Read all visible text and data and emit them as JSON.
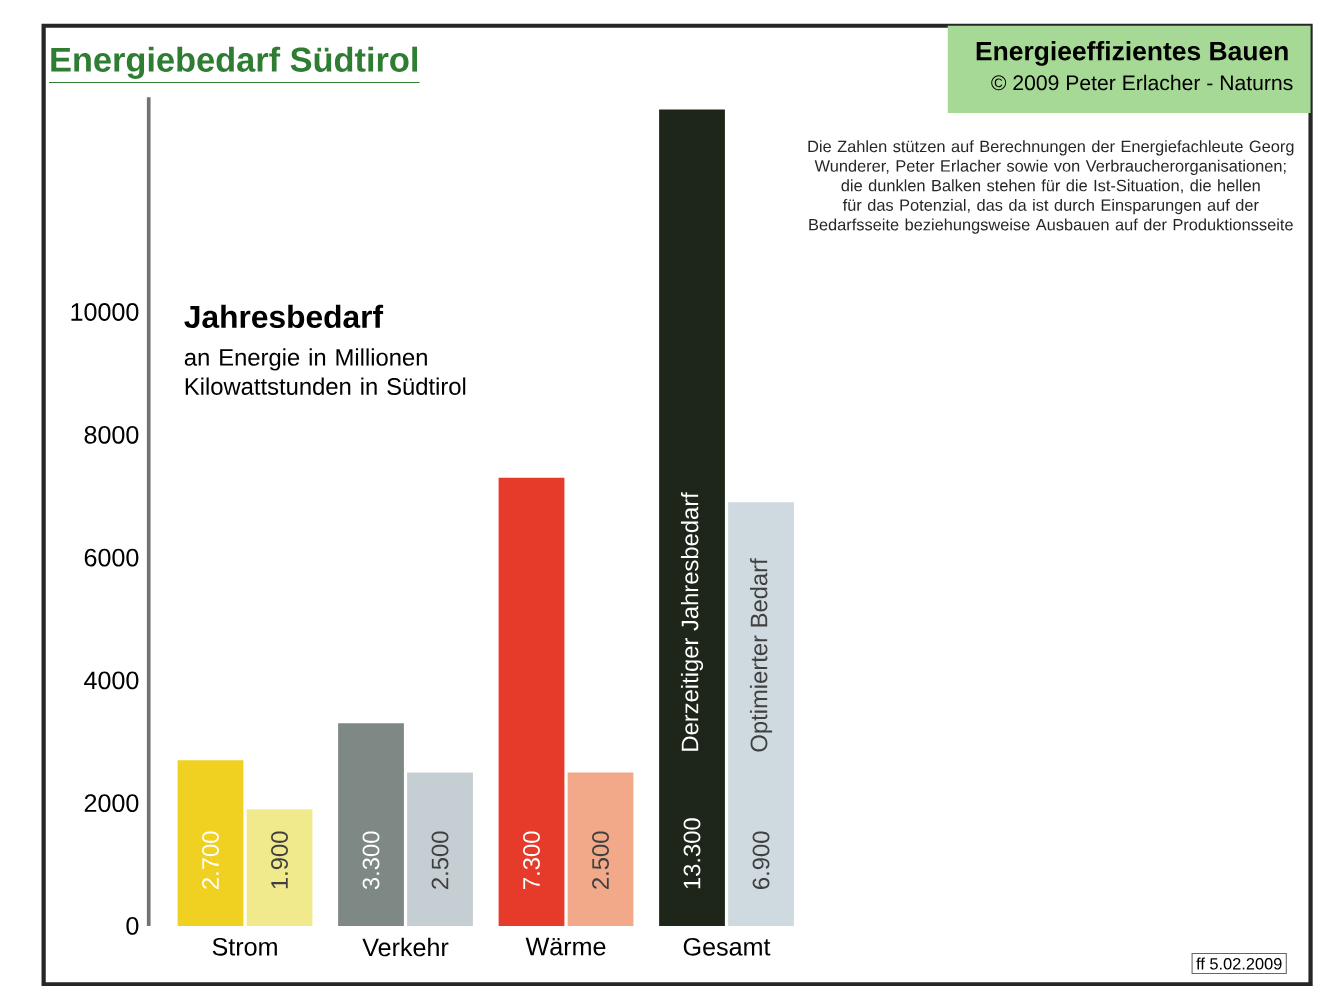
{
  "chart_data": {
    "type": "bar",
    "title": "Energiebedarf Südtirol",
    "categories": [
      "Strom",
      "Verkehr",
      "Wärme",
      "Gesamt"
    ],
    "series": [
      {
        "name": "Derzeitiger Jahresbedarf",
        "colors": [
          "#f0d020",
          "#7e8985",
          "#e63b2a",
          "#1d2619"
        ],
        "values": [
          2700,
          3300,
          7300,
          13300
        ],
        "value_labels": [
          "2.700",
          "3.300",
          "7.300",
          "13.300"
        ]
      },
      {
        "name": "Optimierter Bedarf",
        "colors": [
          "#f1ea8c",
          "#c5ced2",
          "#f2a98a",
          "#cfdae0"
        ],
        "values": [
          1900,
          2500,
          2500,
          6900
        ],
        "value_labels": [
          "1.900",
          "2.500",
          "2.500",
          "6.900"
        ]
      }
    ],
    "ylim": [
      0,
      13500
    ],
    "yticks": [
      0,
      2000,
      4000,
      6000,
      8000,
      10000
    ],
    "annotations": [
      "Energieeffizientes Bauen",
      "© 2009 Peter Erlacher - Naturns",
      "Jahresbedarf",
      "an Energie in Millionen Kilowattstunden in Südtirol",
      "Die Zahlen stützen auf Berechnungen der Energiefachleute Georg Wunderer, Peter Erlacher sowie von Verbraucherorganisationen; die dunklen Balken stehen für die Ist-Situation, die hellen für das Potenzial, das da ist durch Einsparungen auf der Bedarfsseite beziehungsweise Ausbauen auf der Produktionsseite",
      "ff 5.02.2009"
    ]
  }
}
